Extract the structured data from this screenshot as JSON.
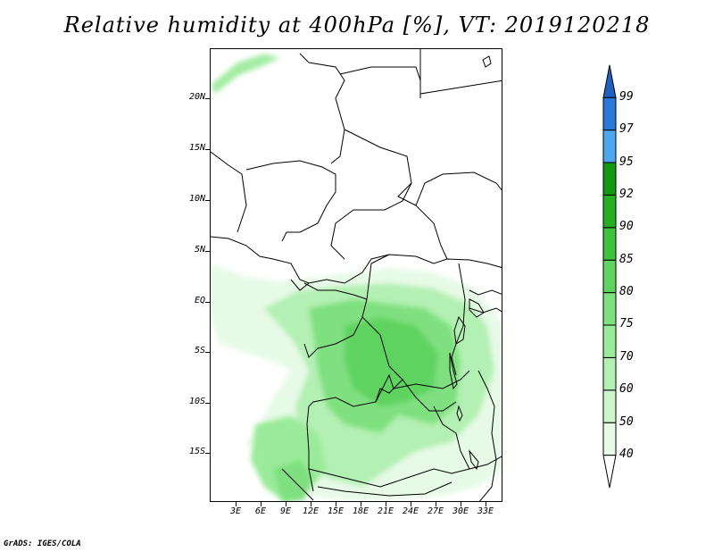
{
  "title": "Relative humidity at 400hPa [%], VT: 2019120218",
  "footer": "GrADS: IGES/COLA",
  "map": {
    "lat_ticks": [
      "20N",
      "15N",
      "10N",
      "5N",
      "EQ",
      "5S",
      "10S",
      "15S"
    ],
    "lon_ticks": [
      "3E",
      "6E",
      "9E",
      "12E",
      "15E",
      "18E",
      "21E",
      "24E",
      "27E",
      "30E",
      "33E"
    ]
  },
  "colorbar": {
    "levels": [
      "40",
      "50",
      "60",
      "70",
      "75",
      "80",
      "85",
      "90",
      "92",
      "95",
      "97",
      "99"
    ],
    "colors": [
      "#ffffff",
      "#e6fae6",
      "#ccf5cc",
      "#b3f0b3",
      "#99eb99",
      "#7fe07f",
      "#5fd35f",
      "#3cc43c",
      "#22b022",
      "#119911",
      "#4da6ee",
      "#2a78d8",
      "#1e5fbf"
    ]
  }
}
